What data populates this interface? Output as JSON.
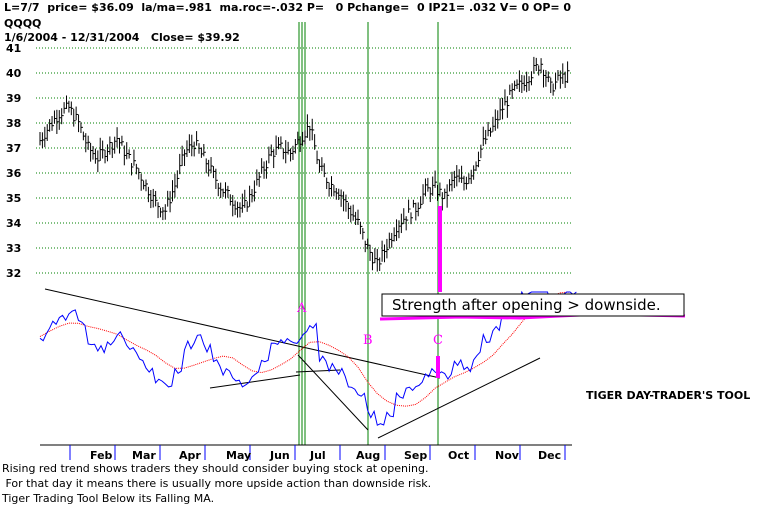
{
  "header": {
    "line1": "L=7/7  price= $36.09  la/ma=.981  ma.roc=-.032 P=   0 Pchange=  0 IP21= .032 V= 0 OP= 0",
    "ticker": "QQQQ",
    "line3": "1/6/2004 - 12/31/2004   Close= $39.92"
  },
  "captions": [
    "Rising red trend shows traders they should consider buying stock at opening.",
    " For that day it means there is usually more upside action than downside risk.",
    "Tiger Trading Tool Below its Falling MA."
  ],
  "colors": {
    "price_bars": "#000000",
    "grid": "#008000",
    "markers": "#008000",
    "indicator": "#0000ff",
    "indicator_ma": "#ff0000",
    "annotation": "#ff00ff"
  },
  "chart_data": [
    {
      "type": "ohlc",
      "ylim": [
        31.5,
        41.3
      ],
      "yticks": [
        32,
        33,
        34,
        35,
        36,
        37,
        38,
        39,
        40,
        41
      ],
      "grid": "horizontal",
      "x_months": [
        "Feb",
        "Mar",
        "Apr",
        "May",
        "Jun",
        "Jul",
        "Aug",
        "Sep",
        "Oct",
        "Nov",
        "Dec"
      ],
      "series": [
        {
          "name": "",
          "weekly_close": [
            37.3,
            37.9,
            38.4,
            38.6,
            38.0,
            37.0,
            36.6,
            37.0,
            37.4,
            36.7,
            36.2,
            35.5,
            34.8,
            34.5,
            35.5,
            36.8,
            37.2,
            36.6,
            35.9,
            35.3,
            34.9,
            34.5,
            35.2,
            36.0,
            36.8,
            37.0,
            36.8,
            37.4,
            37.9,
            36.2,
            35.6,
            35.3,
            34.6,
            34.0,
            33.0,
            32.3,
            33.1,
            33.9,
            34.3,
            34.6,
            35.3,
            35.4,
            35.0,
            35.8,
            35.6,
            36.2,
            37.2,
            37.8,
            38.6,
            39.2,
            39.6,
            40.0,
            40.4,
            39.4,
            39.8,
            39.9
          ]
        }
      ],
      "markers": [
        {
          "label": "A",
          "week": 29
        },
        {
          "label": "B",
          "week": 36
        },
        {
          "label": "C",
          "week": 44
        }
      ]
    },
    {
      "type": "line",
      "series": [
        {
          "name": "",
          "color": "indicator"
        },
        {
          "name": "",
          "color": "indicator_ma"
        }
      ]
    }
  ],
  "annotations": {
    "strength_text": "Strength after opening > downside.",
    "tool_label": "TIGER DAY-TRADER'S TOOL"
  }
}
